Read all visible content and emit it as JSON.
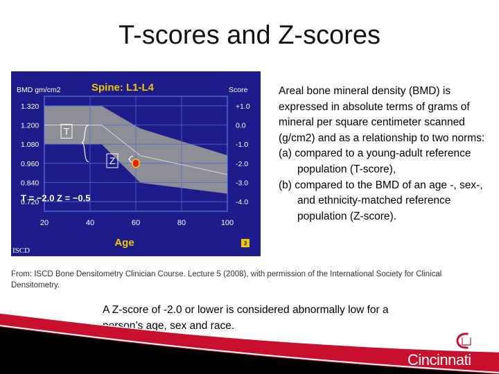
{
  "slide": {
    "title": "T-scores and Z-scores",
    "side_intro": "Areal bone mineral density (BMD) is expressed in absolute terms of grams of mineral per square centimeter scanned (g/cm2) and as a relationship to two norms:",
    "side_item_a": "(a) compared to a young-adult reference population (T-score),",
    "side_item_b": "(b) compared to the BMD of an age -, sex-, and ethnicity-matched reference population (Z-score).",
    "citation": "From: ISCD Bone Densitometry Clinician Course. Lecture 5 (2008), with permission of the International Society for Clinical Densitometry.",
    "bottom_text": "A Z-score of -2.0 or lower is considered abnormally low for a person’s age, sex and race.",
    "logo_university": "UNIVERSITY OF",
    "logo_name": "Cincinnati"
  },
  "chart_data": {
    "type": "area",
    "title": "Spine: L1-L4",
    "ylabel": "BMD gm/cm2",
    "ylabel_right": "Score",
    "xlabel": "Age",
    "x_ticks": [
      20,
      40,
      60,
      80,
      100
    ],
    "y_ticks": [
      "1.320",
      "1.200",
      "1.080",
      "0.960",
      "0.840",
      "0.720"
    ],
    "y_right_ticks": [
      "+1.0",
      "0.0",
      "-1.0",
      "-2.0",
      "-3.0",
      "-4.0"
    ],
    "xlim": [
      20,
      100
    ],
    "ylim": [
      0.66,
      1.38
    ],
    "grid": true,
    "band_upper": {
      "x": [
        20,
        45,
        62,
        100
      ],
      "y": [
        1.32,
        1.32,
        1.178,
        1.01
      ]
    },
    "band_lower": {
      "x": [
        20,
        45,
        62,
        100
      ],
      "y": [
        1.08,
        1.08,
        0.838,
        0.77
      ]
    },
    "mean_line": {
      "x": [
        20,
        45,
        62,
        100
      ],
      "y": [
        1.2,
        1.2,
        1.008,
        0.89
      ]
    },
    "patient_point": {
      "x": 60,
      "y": 0.96
    },
    "bracket_T_label": "T",
    "bracket_Z_label": "Z",
    "result_text": "T = −2.0   Z = −0.5",
    "logo_text": "ISCD",
    "slide_number": "3",
    "colors": {
      "background": "#1e1c8a",
      "band": "#8e8e96",
      "text": "#ffffff",
      "accent": "#f0c800",
      "point": "#e02010"
    }
  }
}
